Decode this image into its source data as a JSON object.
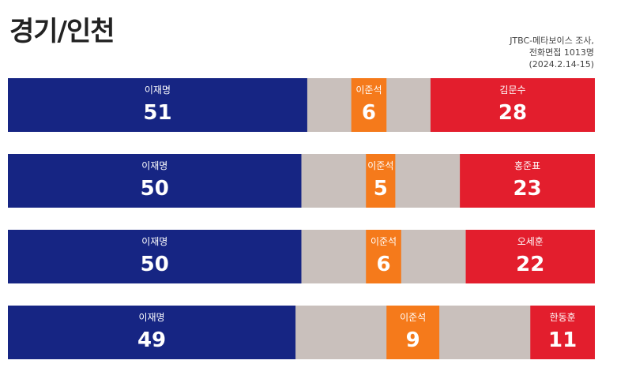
{
  "title": "경기/인천",
  "source": [
    "JTBC-메타보이스 조사,",
    "전화면접 1013명",
    "(2024.2.14-15)"
  ],
  "colors": {
    "bar_left": "#162583",
    "bar_mid": "#f57a1b",
    "bar_right": "#e31e2d",
    "bar_rest": "#c9c0bc"
  },
  "chart_data": {
    "type": "bar",
    "stacked": true,
    "orientation": "horizontal",
    "title": "경기/인천",
    "rows": [
      {
        "left": {
          "name": "이재명",
          "value": 51
        },
        "mid": {
          "name": "이준석",
          "value": 6
        },
        "right": {
          "name": "김문수",
          "value": 28
        }
      },
      {
        "left": {
          "name": "이재명",
          "value": 50
        },
        "mid": {
          "name": "이준석",
          "value": 5
        },
        "right": {
          "name": "홍준표",
          "value": 23
        }
      },
      {
        "left": {
          "name": "이재명",
          "value": 50
        },
        "mid": {
          "name": "이준석",
          "value": 6
        },
        "right": {
          "name": "오세훈",
          "value": 22
        }
      },
      {
        "left": {
          "name": "이재명",
          "value": 49
        },
        "mid": {
          "name": "이준석",
          "value": 9
        },
        "right": {
          "name": "한동훈",
          "value": 11
        }
      }
    ]
  }
}
